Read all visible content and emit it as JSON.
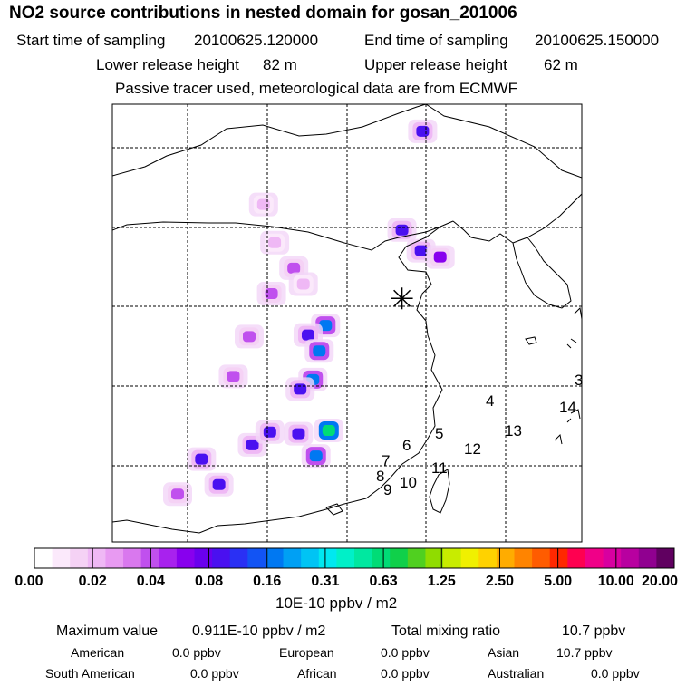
{
  "title": "NO2 source contributions in nested domain for gosan_201006",
  "header": {
    "start_label": "Start time of sampling",
    "start_value": "20100625.120000",
    "end_label": "End time of sampling",
    "end_value": "20100625.150000",
    "lower_label": "Lower release height",
    "lower_value": "82 m",
    "upper_label": "Upper release height",
    "upper_value": "62 m",
    "note": "Passive tracer used, meteorological data are from ECMWF"
  },
  "chart_data": {
    "type": "heatmap",
    "title": "NO2 source contributions in nested domain for gosan_201006",
    "units": "10E-10 ppbv / m2",
    "colorbar_ticks": [
      "0.00",
      "0.02",
      "0.04",
      "0.08",
      "0.16",
      "0.31",
      "0.63",
      "1.25",
      "2.50",
      "5.00",
      "10.00",
      "20.00"
    ],
    "colorbar_colors": [
      "#ffffff",
      "#fbe9fb",
      "#f5d2f5",
      "#efb8f5",
      "#e89af2",
      "#d978ee",
      "#c050ee",
      "#a822ee",
      "#8800ee",
      "#6a00ee",
      "#4a10f0",
      "#2a30f4",
      "#1254f4",
      "#0078f2",
      "#00a0f4",
      "#00c4f4",
      "#00e8f0",
      "#00f0c8",
      "#00e8a0",
      "#00dc76",
      "#10d04a",
      "#50d020",
      "#90dc00",
      "#c8ec00",
      "#f0f000",
      "#ffd200",
      "#ffac00",
      "#ff8400",
      "#ff5c00",
      "#ff2800",
      "#ff0050",
      "#f00088",
      "#d800a0",
      "#b800a0",
      "#900090",
      "#600060"
    ],
    "grid": true,
    "marker": "Gosan receptor (star)",
    "receptor_lon": 126.2,
    "receptor_lat": 33.3,
    "region_labels": [
      "3",
      "4",
      "5",
      "6",
      "7",
      "8",
      "9",
      "10",
      "11",
      "12",
      "13",
      "14"
    ],
    "hotspots": [
      {
        "lon": 127.5,
        "lat": 43.8,
        "value": 0.08
      },
      {
        "lon": 126.2,
        "lat": 37.6,
        "value": 0.08
      },
      {
        "lon": 127.4,
        "lat": 36.3,
        "value": 0.08
      },
      {
        "lon": 128.6,
        "lat": 35.9,
        "value": 0.06
      },
      {
        "lon": 121.4,
        "lat": 31.6,
        "value": 0.16
      },
      {
        "lon": 120.3,
        "lat": 31.0,
        "value": 0.08
      },
      {
        "lon": 121.0,
        "lat": 30.0,
        "value": 0.16
      },
      {
        "lon": 120.6,
        "lat": 28.2,
        "value": 0.16
      },
      {
        "lon": 119.8,
        "lat": 27.6,
        "value": 0.08
      },
      {
        "lon": 121.6,
        "lat": 25.0,
        "value": 0.63
      },
      {
        "lon": 120.8,
        "lat": 23.4,
        "value": 0.16
      },
      {
        "lon": 119.7,
        "lat": 24.8,
        "value": 0.08
      },
      {
        "lon": 113.6,
        "lat": 23.2,
        "value": 0.08
      },
      {
        "lon": 114.7,
        "lat": 21.6,
        "value": 0.08
      },
      {
        "lon": 116.8,
        "lat": 24.1,
        "value": 0.08
      },
      {
        "lon": 117.9,
        "lat": 24.9,
        "value": 0.08
      },
      {
        "lon": 115.6,
        "lat": 28.4,
        "value": 0.04
      },
      {
        "lon": 116.6,
        "lat": 30.9,
        "value": 0.04
      },
      {
        "lon": 118.0,
        "lat": 33.6,
        "value": 0.04
      },
      {
        "lon": 119.4,
        "lat": 35.2,
        "value": 0.04
      },
      {
        "lon": 120.0,
        "lat": 34.2,
        "value": 0.02
      },
      {
        "lon": 117.5,
        "lat": 39.2,
        "value": 0.02
      },
      {
        "lon": 118.2,
        "lat": 36.8,
        "value": 0.02
      },
      {
        "lon": 112.1,
        "lat": 21.0,
        "value": 0.04
      }
    ]
  },
  "footer": {
    "max_label": "Maximum value",
    "max_value": "0.911E-10 ppbv / m2",
    "total_label": "Total mixing ratio",
    "total_value": "10.7 ppbv",
    "american_label": "American",
    "american_value": "0.0 ppbv",
    "european_label": "European",
    "european_value": "0.0 ppbv",
    "asian_label": "Asian",
    "asian_value": "10.7 ppbv",
    "south_american_label": "South American",
    "south_american_value": "0.0 ppbv",
    "african_label": "African",
    "african_value": "0.0 ppbv",
    "australian_label": "Australian",
    "australian_value": "0.0 ppbv"
  }
}
